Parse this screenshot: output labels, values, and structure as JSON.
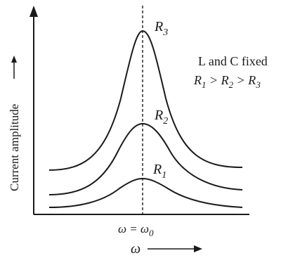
{
  "diagram": {
    "y_axis_label": "Current amplitude",
    "x_axis_label": "ω",
    "resonance_label": "ω = ω",
    "resonance_label_sub": "0",
    "note_line1": "L and C fixed",
    "note_line2": {
      "parts": [
        {
          "t": "R",
          "sub": "1"
        },
        {
          "t": " > R",
          "sub": "2"
        },
        {
          "t": " > R",
          "sub": "3"
        }
      ]
    },
    "curves": [
      {
        "name": "R",
        "sub": "3"
      },
      {
        "name": "R",
        "sub": "2"
      },
      {
        "name": "R",
        "sub": "1"
      }
    ]
  }
}
